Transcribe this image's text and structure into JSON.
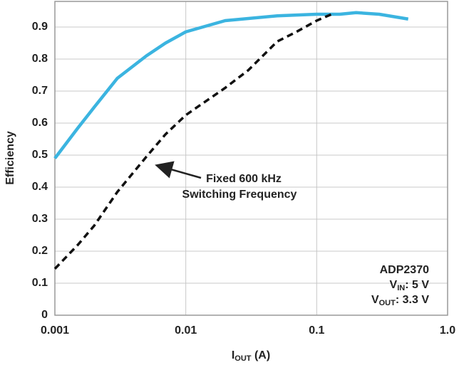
{
  "chart_data": {
    "type": "line",
    "x_label": {
      "main": "I",
      "sub": "OUT",
      "rest": " (A)"
    },
    "y_label": "Efficiency",
    "xscale": "log",
    "xlim": [
      0.001,
      1
    ],
    "xticks": [
      0.001,
      0.01,
      0.1,
      {
        "value": 1,
        "label": "1.0"
      }
    ],
    "ylim": [
      0,
      0.98
    ],
    "yticks": [
      0,
      0.1,
      0.2,
      0.3,
      0.4,
      0.5,
      0.6,
      0.7,
      0.8,
      0.9
    ],
    "grid": true,
    "series": [
      {
        "color": "#3bb4e0",
        "style": "solid",
        "x": [
          0.001,
          0.0015,
          0.002,
          0.003,
          0.005,
          0.007,
          0.01,
          0.02,
          0.05,
          0.1,
          0.15,
          0.2,
          0.3,
          0.5
        ],
        "values": [
          0.49,
          0.585,
          0.65,
          0.74,
          0.81,
          0.85,
          0.885,
          0.92,
          0.935,
          0.94,
          0.94,
          0.945,
          0.94,
          0.925
        ]
      },
      {
        "color": "#111111",
        "style": "dashed",
        "x": [
          0.001,
          0.0015,
          0.002,
          0.003,
          0.005,
          0.007,
          0.01,
          0.02,
          0.03,
          0.05,
          0.07,
          0.1,
          0.13
        ],
        "values": [
          0.145,
          0.22,
          0.28,
          0.385,
          0.495,
          0.565,
          0.625,
          0.71,
          0.765,
          0.855,
          0.885,
          0.92,
          0.94
        ]
      }
    ],
    "annotation": [
      "Fixed 600 kHz",
      "Switching Frequency"
    ],
    "info": {
      "device": "ADP2370",
      "vin": {
        "main": "V",
        "sub": "IN",
        "rest": ": 5 V"
      },
      "vout": {
        "main": "V",
        "sub": "OUT",
        "rest": ": 3.3 V"
      }
    }
  }
}
